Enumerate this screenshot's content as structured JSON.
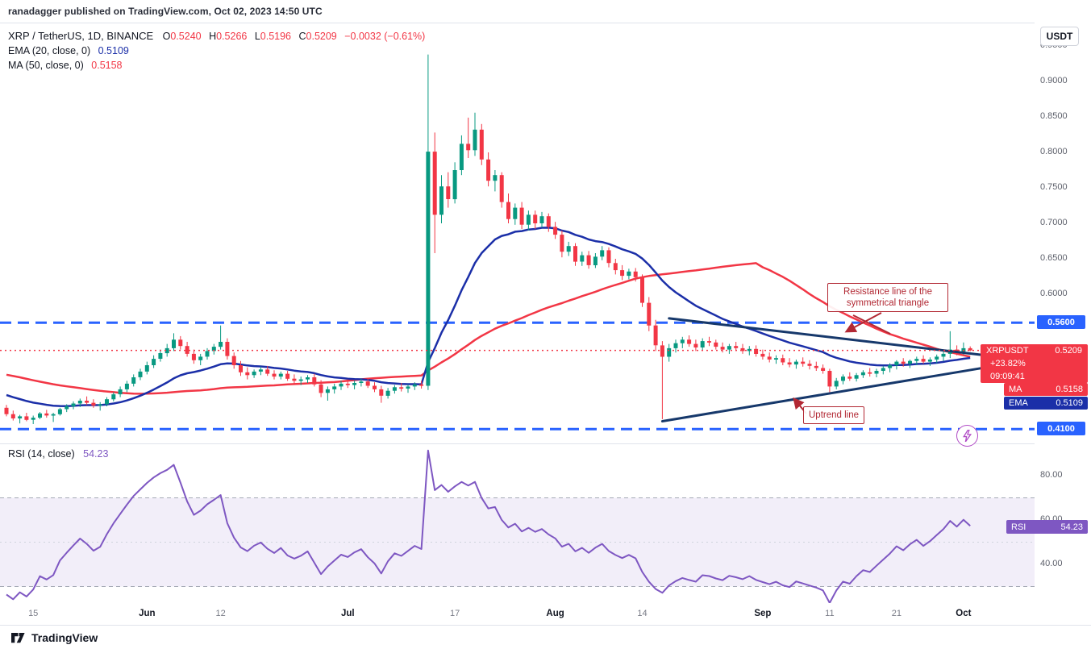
{
  "meta": {
    "publisher_line": "ranadagger published on TradingView.com, Oct 02, 2023 14:50 UTC"
  },
  "legend": {
    "symbol_title": "XRP / TetherUS, 1D, BINANCE",
    "o_label": "O",
    "o_value": "0.5240",
    "h_label": "H",
    "h_value": "0.5266",
    "l_label": "L",
    "l_value": "0.5196",
    "c_label": "C",
    "c_value": "0.5209",
    "change_text": "−0.0032 (−0.61%)",
    "ema_label": "EMA (20, close, 0)",
    "ema_value": "0.5109",
    "ma_label": "MA (50, close, 0)",
    "ma_value": "0.5158"
  },
  "axis": {
    "currency_button": "USDT",
    "price_labels": [
      "0.9500",
      "0.9000",
      "0.8500",
      "0.8000",
      "0.7500",
      "0.7000",
      "0.6500",
      "0.6000"
    ],
    "upper_level_badge": "0.5600",
    "lower_level_badge": "0.4100",
    "symbol_badge": "XRPUSDT",
    "last_price": "0.5209",
    "change_pct": "+23.82%",
    "countdown": "09:09:41",
    "ma_badge_label": "MA",
    "ma_badge_value": "0.5158",
    "ema_badge_label": "EMA",
    "ema_badge_value": "0.5109"
  },
  "rsi_pane": {
    "legend_label": "RSI (14, close)",
    "legend_value": "54.23",
    "badge_label": "RSI",
    "badge_value": "54.23",
    "scale_labels": [
      "80.00",
      "60.00",
      "40.00"
    ]
  },
  "annotations": {
    "resistance_note": "Resistance line of the symmetrical triangle",
    "uptrend_note": "Uptrend line"
  },
  "footer": {
    "brand": "TradingView"
  },
  "colors": {
    "up": "#089981",
    "down": "#F23645",
    "ema": "#1b2fa8",
    "ma": "#F23645",
    "level_blue": "#2962FF",
    "trend_navy": "#16386b",
    "rsi_purple": "#7E57C2",
    "annotation_red": "#b22833",
    "axis_text": "#5d606b",
    "dark_text": "#131722"
  },
  "chart_data": {
    "type": "candlestick",
    "symbol": "XRPUSDT",
    "timeframe": "1D",
    "title": "XRP / TetherUS, 1D, BINANCE",
    "y_axis": {
      "min": 0.4,
      "max": 0.97,
      "ticks": [
        0.95,
        0.9,
        0.85,
        0.8,
        0.75,
        0.7,
        0.65,
        0.6
      ]
    },
    "levels": [
      0.56,
      0.41
    ],
    "last_close": 0.5209,
    "time_axis": [
      {
        "label": "15",
        "i": 4,
        "major": false
      },
      {
        "label": "Jun",
        "i": 21,
        "major": true
      },
      {
        "label": "12",
        "i": 32,
        "major": false
      },
      {
        "label": "Jul",
        "i": 51,
        "major": true
      },
      {
        "label": "17",
        "i": 67,
        "major": false
      },
      {
        "label": "Aug",
        "i": 82,
        "major": true
      },
      {
        "label": "14",
        "i": 95,
        "major": false
      },
      {
        "label": "Sep",
        "i": 113,
        "major": true
      },
      {
        "label": "11",
        "i": 123,
        "major": false
      },
      {
        "label": "21",
        "i": 133,
        "major": false
      },
      {
        "label": "Oct",
        "i": 143,
        "major": true
      }
    ],
    "candles": [
      [
        0.44,
        0.444,
        0.428,
        0.431
      ],
      [
        0.431,
        0.436,
        0.422,
        0.425
      ],
      [
        0.425,
        0.43,
        0.418,
        0.428
      ],
      [
        0.428,
        0.433,
        0.421,
        0.423
      ],
      [
        0.423,
        0.429,
        0.417,
        0.426
      ],
      [
        0.426,
        0.434,
        0.424,
        0.432
      ],
      [
        0.432,
        0.437,
        0.426,
        0.429
      ],
      [
        0.429,
        0.433,
        0.42,
        0.431
      ],
      [
        0.431,
        0.44,
        0.429,
        0.438
      ],
      [
        0.438,
        0.445,
        0.434,
        0.442
      ],
      [
        0.442,
        0.449,
        0.438,
        0.446
      ],
      [
        0.446,
        0.453,
        0.441,
        0.45
      ],
      [
        0.45,
        0.456,
        0.444,
        0.447
      ],
      [
        0.447,
        0.452,
        0.44,
        0.443
      ],
      [
        0.443,
        0.448,
        0.436,
        0.445
      ],
      [
        0.445,
        0.455,
        0.442,
        0.452
      ],
      [
        0.452,
        0.462,
        0.449,
        0.459
      ],
      [
        0.459,
        0.47,
        0.455,
        0.466
      ],
      [
        0.466,
        0.478,
        0.462,
        0.474
      ],
      [
        0.474,
        0.487,
        0.47,
        0.483
      ],
      [
        0.483,
        0.495,
        0.479,
        0.491
      ],
      [
        0.491,
        0.505,
        0.487,
        0.5
      ],
      [
        0.5,
        0.514,
        0.496,
        0.509
      ],
      [
        0.509,
        0.522,
        0.505,
        0.517
      ],
      [
        0.517,
        0.53,
        0.512,
        0.524
      ],
      [
        0.524,
        0.545,
        0.52,
        0.536
      ],
      [
        0.536,
        0.541,
        0.522,
        0.527
      ],
      [
        0.527,
        0.533,
        0.512,
        0.516
      ],
      [
        0.516,
        0.522,
        0.502,
        0.507
      ],
      [
        0.507,
        0.516,
        0.5,
        0.512
      ],
      [
        0.512,
        0.524,
        0.508,
        0.52
      ],
      [
        0.52,
        0.53,
        0.515,
        0.526
      ],
      [
        0.526,
        0.556,
        0.522,
        0.533
      ],
      [
        0.533,
        0.538,
        0.508,
        0.513
      ],
      [
        0.513,
        0.518,
        0.495,
        0.5
      ],
      [
        0.5,
        0.506,
        0.485,
        0.49
      ],
      [
        0.49,
        0.497,
        0.48,
        0.486
      ],
      [
        0.486,
        0.494,
        0.482,
        0.491
      ],
      [
        0.491,
        0.498,
        0.486,
        0.494
      ],
      [
        0.494,
        0.499,
        0.485,
        0.488
      ],
      [
        0.488,
        0.493,
        0.48,
        0.484
      ],
      [
        0.484,
        0.491,
        0.48,
        0.488
      ],
      [
        0.488,
        0.492,
        0.478,
        0.481
      ],
      [
        0.481,
        0.487,
        0.474,
        0.478
      ],
      [
        0.478,
        0.484,
        0.472,
        0.48
      ],
      [
        0.48,
        0.486,
        0.475,
        0.483
      ],
      [
        0.483,
        0.488,
        0.47,
        0.473
      ],
      [
        0.473,
        0.479,
        0.455,
        0.461
      ],
      [
        0.461,
        0.47,
        0.45,
        0.466
      ],
      [
        0.466,
        0.474,
        0.46,
        0.47
      ],
      [
        0.47,
        0.478,
        0.465,
        0.474
      ],
      [
        0.474,
        0.48,
        0.468,
        0.472
      ],
      [
        0.472,
        0.478,
        0.466,
        0.475
      ],
      [
        0.475,
        0.481,
        0.47,
        0.477
      ],
      [
        0.477,
        0.482,
        0.468,
        0.471
      ],
      [
        0.471,
        0.476,
        0.462,
        0.466
      ],
      [
        0.466,
        0.471,
        0.447,
        0.457
      ],
      [
        0.457,
        0.468,
        0.453,
        0.464
      ],
      [
        0.464,
        0.472,
        0.46,
        0.469
      ],
      [
        0.469,
        0.475,
        0.463,
        0.467
      ],
      [
        0.467,
        0.473,
        0.461,
        0.47
      ],
      [
        0.47,
        0.476,
        0.465,
        0.473
      ],
      [
        0.473,
        0.478,
        0.467,
        0.471
      ],
      [
        0.471,
        0.938,
        0.465,
        0.801
      ],
      [
        0.801,
        0.828,
        0.658,
        0.712
      ],
      [
        0.712,
        0.768,
        0.7,
        0.752
      ],
      [
        0.752,
        0.772,
        0.722,
        0.734
      ],
      [
        0.734,
        0.786,
        0.728,
        0.775
      ],
      [
        0.775,
        0.824,
        0.768,
        0.812
      ],
      [
        0.812,
        0.849,
        0.792,
        0.803
      ],
      [
        0.803,
        0.856,
        0.795,
        0.832
      ],
      [
        0.832,
        0.84,
        0.782,
        0.79
      ],
      [
        0.79,
        0.8,
        0.752,
        0.76
      ],
      [
        0.76,
        0.775,
        0.745,
        0.768
      ],
      [
        0.768,
        0.772,
        0.722,
        0.73
      ],
      [
        0.73,
        0.742,
        0.7,
        0.706
      ],
      [
        0.706,
        0.728,
        0.698,
        0.722
      ],
      [
        0.722,
        0.73,
        0.692,
        0.698
      ],
      [
        0.698,
        0.718,
        0.69,
        0.712
      ],
      [
        0.712,
        0.718,
        0.692,
        0.7
      ],
      [
        0.7,
        0.716,
        0.694,
        0.71
      ],
      [
        0.71,
        0.714,
        0.688,
        0.695
      ],
      [
        0.695,
        0.702,
        0.678,
        0.684
      ],
      [
        0.684,
        0.69,
        0.652,
        0.66
      ],
      [
        0.66,
        0.674,
        0.654,
        0.668
      ],
      [
        0.668,
        0.672,
        0.64,
        0.646
      ],
      [
        0.646,
        0.66,
        0.64,
        0.655
      ],
      [
        0.655,
        0.661,
        0.636,
        0.641
      ],
      [
        0.641,
        0.658,
        0.637,
        0.653
      ],
      [
        0.653,
        0.668,
        0.648,
        0.662
      ],
      [
        0.662,
        0.666,
        0.638,
        0.644
      ],
      [
        0.644,
        0.65,
        0.628,
        0.634
      ],
      [
        0.634,
        0.641,
        0.62,
        0.626
      ],
      [
        0.626,
        0.636,
        0.621,
        0.632
      ],
      [
        0.632,
        0.637,
        0.618,
        0.624
      ],
      [
        0.624,
        0.628,
        0.582,
        0.588
      ],
      [
        0.588,
        0.596,
        0.548,
        0.556
      ],
      [
        0.556,
        0.564,
        0.52,
        0.528
      ],
      [
        0.528,
        0.534,
        0.424,
        0.512
      ],
      [
        0.512,
        0.53,
        0.505,
        0.524
      ],
      [
        0.524,
        0.536,
        0.518,
        0.531
      ],
      [
        0.531,
        0.54,
        0.524,
        0.536
      ],
      [
        0.536,
        0.542,
        0.526,
        0.53
      ],
      [
        0.53,
        0.536,
        0.52,
        0.525
      ],
      [
        0.525,
        0.538,
        0.521,
        0.534
      ],
      [
        0.534,
        0.54,
        0.527,
        0.532
      ],
      [
        0.532,
        0.536,
        0.522,
        0.526
      ],
      [
        0.526,
        0.532,
        0.518,
        0.522
      ],
      [
        0.522,
        0.53,
        0.516,
        0.527
      ],
      [
        0.527,
        0.533,
        0.52,
        0.524
      ],
      [
        0.524,
        0.53,
        0.516,
        0.52
      ],
      [
        0.52,
        0.527,
        0.514,
        0.523
      ],
      [
        0.523,
        0.528,
        0.512,
        0.516
      ],
      [
        0.516,
        0.522,
        0.508,
        0.512
      ],
      [
        0.512,
        0.518,
        0.504,
        0.508
      ],
      [
        0.508,
        0.514,
        0.502,
        0.51
      ],
      [
        0.51,
        0.515,
        0.5,
        0.504
      ],
      [
        0.504,
        0.51,
        0.497,
        0.501
      ],
      [
        0.501,
        0.508,
        0.495,
        0.505
      ],
      [
        0.505,
        0.511,
        0.498,
        0.502
      ],
      [
        0.502,
        0.507,
        0.494,
        0.499
      ],
      [
        0.499,
        0.505,
        0.492,
        0.496
      ],
      [
        0.496,
        0.501,
        0.488,
        0.492
      ],
      [
        0.492,
        0.495,
        0.462,
        0.47
      ],
      [
        0.47,
        0.482,
        0.466,
        0.478
      ],
      [
        0.478,
        0.487,
        0.473,
        0.484
      ],
      [
        0.484,
        0.49,
        0.478,
        0.481
      ],
      [
        0.481,
        0.489,
        0.477,
        0.486
      ],
      [
        0.486,
        0.493,
        0.482,
        0.49
      ],
      [
        0.49,
        0.496,
        0.484,
        0.488
      ],
      [
        0.488,
        0.495,
        0.483,
        0.492
      ],
      [
        0.492,
        0.499,
        0.487,
        0.496
      ],
      [
        0.496,
        0.503,
        0.49,
        0.5
      ],
      [
        0.5,
        0.507,
        0.494,
        0.505
      ],
      [
        0.505,
        0.51,
        0.498,
        0.502
      ],
      [
        0.502,
        0.508,
        0.496,
        0.506
      ],
      [
        0.506,
        0.512,
        0.5,
        0.509
      ],
      [
        0.509,
        0.514,
        0.502,
        0.505
      ],
      [
        0.505,
        0.511,
        0.499,
        0.508
      ],
      [
        0.508,
        0.515,
        0.503,
        0.512
      ],
      [
        0.512,
        0.519,
        0.506,
        0.516
      ],
      [
        0.516,
        0.548,
        0.51,
        0.522
      ],
      [
        0.522,
        0.528,
        0.514,
        0.519
      ],
      [
        0.519,
        0.532,
        0.515,
        0.524
      ],
      [
        0.524,
        0.5266,
        0.5196,
        0.5209
      ]
    ],
    "pre_closes": [
      0.513,
      0.518,
      0.522,
      0.526,
      0.53,
      0.527,
      0.524,
      0.52,
      0.516,
      0.512,
      0.508,
      0.511,
      0.515,
      0.51,
      0.505,
      0.5,
      0.504,
      0.508,
      0.512,
      0.506,
      0.5,
      0.495,
      0.49,
      0.494,
      0.498,
      0.492,
      0.486,
      0.48,
      0.484,
      0.488,
      0.482,
      0.476,
      0.47,
      0.474,
      0.478,
      0.472,
      0.466,
      0.46,
      0.464,
      0.468,
      0.462,
      0.456,
      0.45,
      0.454,
      0.458,
      0.452,
      0.446,
      0.442,
      0.446,
      0.444
    ],
    "overlays": [
      {
        "name": "EMA",
        "period": 20,
        "current": 0.5109
      },
      {
        "name": "SMA",
        "period": 50,
        "current": 0.5158
      }
    ],
    "trendlines": [
      {
        "name": "triangle-resistance",
        "i1": 99,
        "p1": 0.566,
        "i2": 148,
        "p2": 0.512
      },
      {
        "name": "uptrend-line",
        "i1": 98,
        "p1": 0.421,
        "i2": 147,
        "p2": 0.498
      }
    ],
    "rsi": {
      "period": 14,
      "current": 54.23,
      "upper_band": 70,
      "lower_band": 30,
      "scale_ticks": [
        80,
        60,
        40
      ]
    }
  }
}
